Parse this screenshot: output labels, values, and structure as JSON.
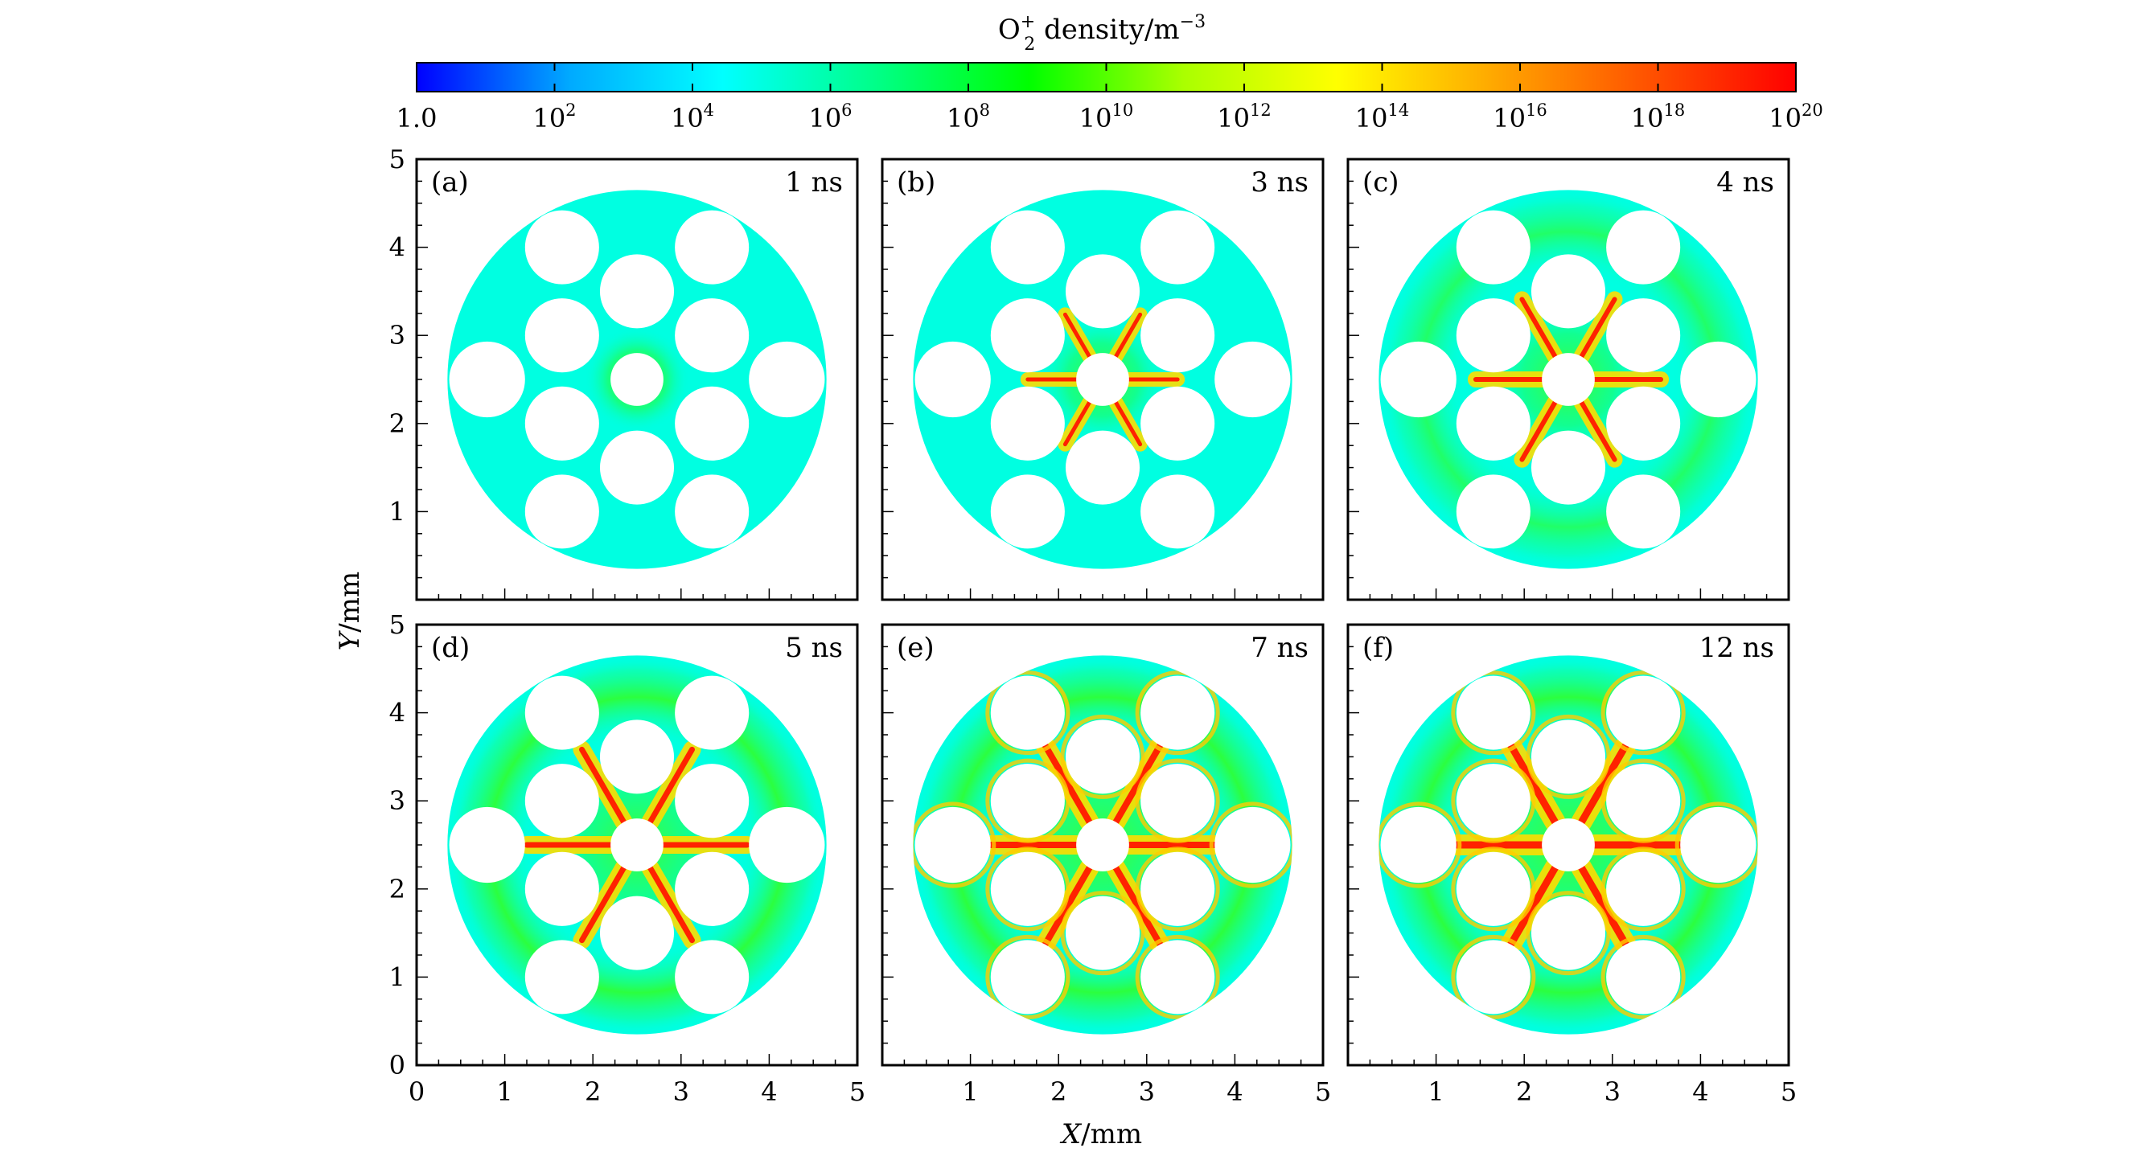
{
  "chart_data": {
    "type": "heatmap",
    "colorbar": {
      "title_main": "O",
      "title_sub": "2",
      "title_sup": "+",
      "title_rest": " density/m",
      "title_unit_sup": "−3",
      "scale": "log",
      "range": [
        1.0,
        1e+20
      ],
      "ticks": [
        {
          "base": "1.0",
          "exp": ""
        },
        {
          "base": "10",
          "exp": "2"
        },
        {
          "base": "10",
          "exp": "4"
        },
        {
          "base": "10",
          "exp": "6"
        },
        {
          "base": "10",
          "exp": "8"
        },
        {
          "base": "10",
          "exp": "10"
        },
        {
          "base": "10",
          "exp": "12"
        },
        {
          "base": "10",
          "exp": "14"
        },
        {
          "base": "10",
          "exp": "16"
        },
        {
          "base": "10",
          "exp": "18"
        },
        {
          "base": "10",
          "exp": "20"
        }
      ],
      "colors": [
        "#0000ff",
        "#00aaff",
        "#00ffff",
        "#00ff88",
        "#00ff00",
        "#aaff00",
        "#ffff00",
        "#ffaa00",
        "#ff5500",
        "#ff0000"
      ]
    },
    "background_color": "#00ffe1",
    "xlabel_var": "X",
    "xlabel_unit": "/mm",
    "ylabel_var": "Y",
    "ylabel_unit": "/mm",
    "xlim": [
      0,
      5
    ],
    "ylim": [
      0,
      5
    ],
    "x_ticks": [
      "0",
      "1",
      "2",
      "3",
      "4",
      "5"
    ],
    "y_ticks": [
      "0",
      "1",
      "2",
      "3",
      "4",
      "5"
    ],
    "panels": [
      {
        "tag": "(a)",
        "time": "1 ns",
        "stage": 0
      },
      {
        "tag": "(b)",
        "time": "3 ns",
        "stage": 1
      },
      {
        "tag": "(c)",
        "time": "4 ns",
        "stage": 2
      },
      {
        "tag": "(d)",
        "time": "5 ns",
        "stage": 3
      },
      {
        "tag": "(e)",
        "time": "7 ns",
        "stage": 4
      },
      {
        "tag": "(f)",
        "time": "12 ns",
        "stage": 5
      }
    ],
    "domain": {
      "center": [
        2.5,
        2.5
      ],
      "radius": 2.15
    },
    "holes": [
      {
        "x": 0.8,
        "y": 2.5,
        "r": 0.43
      },
      {
        "x": 4.2,
        "y": 2.5,
        "r": 0.43
      },
      {
        "x": 1.65,
        "y": 4.0,
        "r": 0.42
      },
      {
        "x": 3.35,
        "y": 4.0,
        "r": 0.42
      },
      {
        "x": 2.5,
        "y": 3.5,
        "r": 0.42
      },
      {
        "x": 1.65,
        "y": 3.0,
        "r": 0.42
      },
      {
        "x": 3.35,
        "y": 3.0,
        "r": 0.42
      },
      {
        "x": 1.65,
        "y": 2.0,
        "r": 0.42
      },
      {
        "x": 3.35,
        "y": 2.0,
        "r": 0.42
      },
      {
        "x": 2.5,
        "y": 1.5,
        "r": 0.42
      },
      {
        "x": 1.65,
        "y": 1.0,
        "r": 0.42
      },
      {
        "x": 3.35,
        "y": 1.0,
        "r": 0.42
      },
      {
        "x": 2.5,
        "y": 2.5,
        "r": 0.3
      }
    ]
  }
}
